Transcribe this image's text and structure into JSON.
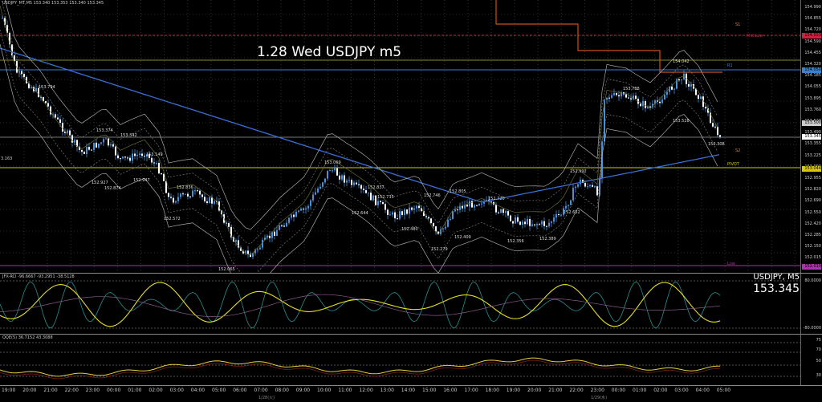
{
  "header": {
    "symbol_line": "USDJPY_MT,M5 153.340 153.353 153.340 153.345",
    "chart_title": "1.28 Wed USDJPY m5",
    "right_symbol": "USDJPY, M5",
    "right_price": "153.345",
    "left_partial_price": "3.163"
  },
  "indicators": {
    "rci_label": "JFX-RCI -96.6667 -93.2951 -38.5128",
    "qqe_label": "QQE(5) 36.7152 43.3088"
  },
  "main_price_ticks": [
    "154.990",
    "154.855",
    "154.720",
    "154.590",
    "154.455",
    "154.320",
    "154.185",
    "154.055",
    "153.895",
    "153.760",
    "153.620",
    "153.490",
    "153.355",
    "153.225",
    "153.090",
    "152.955",
    "152.820",
    "152.690",
    "152.550",
    "152.420",
    "152.285",
    "152.150",
    "152.015"
  ],
  "rci_ticks": [
    "80.0000",
    "-80.0000"
  ],
  "qqe_ticks": [
    "75",
    "70",
    "50",
    "30"
  ],
  "level_tags": [
    {
      "text": "154.553",
      "color": "#d02040"
    },
    {
      "text": "154.050",
      "color": "#3f7fd0"
    },
    {
      "text": "153.500",
      "color": "#cccccc"
    },
    {
      "text": "153.345",
      "color": "#ffffff"
    },
    {
      "text": "153.044",
      "color": "#d8c800"
    },
    {
      "text": "152.010",
      "color": "#b030b0"
    }
  ],
  "pivot_labels": [
    {
      "text": "S1",
      "color": "#cc8a5a"
    },
    {
      "text": "Mid Low",
      "color": "#d02040"
    },
    {
      "text": "R1",
      "color": "#3f7fd0"
    },
    {
      "text": "S2",
      "color": "#cc8a5a"
    },
    {
      "text": "PIVOT",
      "color": "#d8c800"
    },
    {
      "text": "Low",
      "color": "#b030b0"
    }
  ],
  "side_value": "20",
  "price_annotations": [
    "153.794",
    "153.374",
    "153.342",
    "153.149",
    "152.927",
    "152.874",
    "152.947",
    "152.836",
    "152.572",
    "152.065",
    "153.069",
    "152.837",
    "152.644",
    "152.735",
    "152.746",
    "152.805",
    "152.720",
    "152.480",
    "152.409",
    "152.279",
    "152.356",
    "152.389",
    "152.652",
    "152.992",
    "153.788",
    "154.042",
    "153.528",
    "153.308"
  ],
  "time_axis": {
    "labels": [
      "19:00",
      "20:00",
      "21:00",
      "22:00",
      "23:00",
      "00:00",
      "01:00",
      "02:00",
      "03:00",
      "04:00",
      "05:00",
      "06:00",
      "07:00",
      "08:00",
      "09:00",
      "10:00",
      "11:00",
      "12:00",
      "13:00",
      "14:00",
      "15:00",
      "16:00",
      "17:00",
      "18:00",
      "19:00",
      "20:00",
      "21:00",
      "22:00",
      "23:00",
      "00:00",
      "01:00",
      "02:00",
      "03:00",
      "04:00",
      "05:00"
    ],
    "date_labels": [
      "1/28(火)",
      "1/29(水)"
    ]
  }
}
